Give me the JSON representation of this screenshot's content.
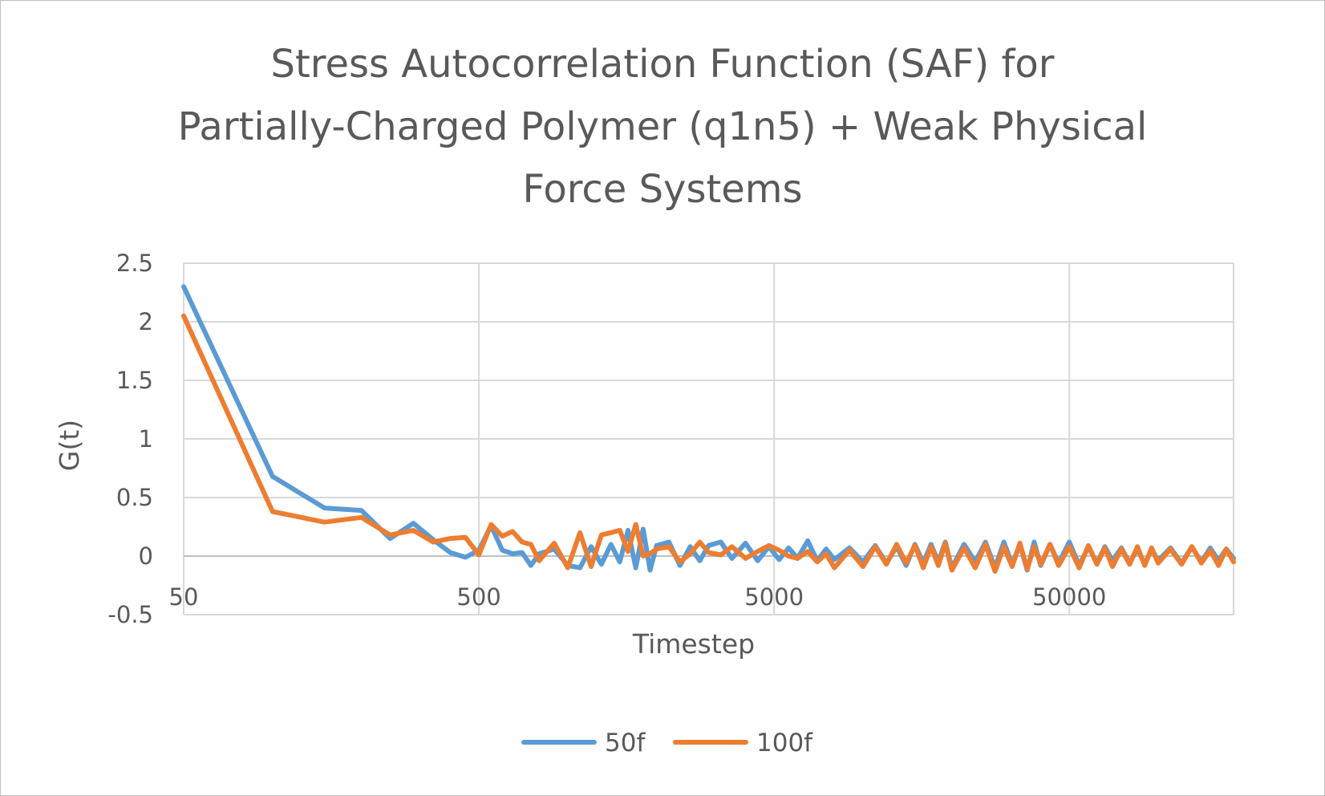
{
  "chart_data": {
    "type": "line",
    "title": "Stress Autocorrelation Function (SAF) for Partially-Charged Polymer (q1n5) + Weak Physical Force Systems",
    "title_lines": [
      "Stress Autocorrelation Function (SAF) for",
      "Partially-Charged Polymer (q1n5) + Weak Physical",
      "Force Systems"
    ],
    "xlabel": "Timestep",
    "ylabel": "G(t)",
    "x_scale": "log",
    "xlim": [
      50,
      180000
    ],
    "ylim": [
      -0.5,
      2.5
    ],
    "x_ticks": [
      "50",
      "500",
      "5000",
      "50000"
    ],
    "x_tick_values": [
      50,
      500,
      5000,
      50000
    ],
    "y_ticks": [
      "2.5",
      "2",
      "1.5",
      "1",
      "0.5",
      "0",
      "-0.5"
    ],
    "y_tick_values": [
      2.5,
      2,
      1.5,
      1,
      0.5,
      0,
      -0.5
    ],
    "grid": true,
    "legend_position": "bottom",
    "series": [
      {
        "name": "50f",
        "color": "#5b9bd5",
        "points": [
          [
            50,
            2.3
          ],
          [
            100,
            0.68
          ],
          [
            150,
            0.41
          ],
          [
            200,
            0.39
          ],
          [
            250,
            0.15
          ],
          [
            300,
            0.28
          ],
          [
            350,
            0.14
          ],
          [
            400,
            0.03
          ],
          [
            450,
            -0.01
          ],
          [
            500,
            0.05
          ],
          [
            550,
            0.26
          ],
          [
            600,
            0.05
          ],
          [
            650,
            0.02
          ],
          [
            700,
            0.03
          ],
          [
            750,
            -0.08
          ],
          [
            800,
            0.02
          ],
          [
            900,
            0.06
          ],
          [
            1000,
            -0.08
          ],
          [
            1100,
            -0.1
          ],
          [
            1200,
            0.08
          ],
          [
            1300,
            -0.07
          ],
          [
            1400,
            0.1
          ],
          [
            1500,
            -0.05
          ],
          [
            1600,
            0.22
          ],
          [
            1700,
            -0.1
          ],
          [
            1800,
            0.23
          ],
          [
            1900,
            -0.12
          ],
          [
            2000,
            0.09
          ],
          [
            2200,
            0.12
          ],
          [
            2400,
            -0.08
          ],
          [
            2600,
            0.08
          ],
          [
            2800,
            -0.04
          ],
          [
            3000,
            0.09
          ],
          [
            3300,
            0.12
          ],
          [
            3600,
            -0.02
          ],
          [
            4000,
            0.11
          ],
          [
            4400,
            -0.04
          ],
          [
            4800,
            0.08
          ],
          [
            5200,
            -0.03
          ],
          [
            5600,
            0.07
          ],
          [
            6000,
            -0.02
          ],
          [
            6500,
            0.13
          ],
          [
            7000,
            -0.04
          ],
          [
            7500,
            0.06
          ],
          [
            8000,
            -0.03
          ],
          [
            9000,
            0.07
          ],
          [
            10000,
            -0.05
          ],
          [
            11000,
            0.09
          ],
          [
            12000,
            -0.06
          ],
          [
            13000,
            0.08
          ],
          [
            14000,
            -0.08
          ],
          [
            15000,
            0.1
          ],
          [
            16000,
            -0.06
          ],
          [
            17000,
            0.1
          ],
          [
            18000,
            -0.05
          ],
          [
            19000,
            0.12
          ],
          [
            20000,
            -0.1
          ],
          [
            22000,
            0.1
          ],
          [
            24000,
            -0.05
          ],
          [
            26000,
            0.12
          ],
          [
            28000,
            -0.1
          ],
          [
            30000,
            0.12
          ],
          [
            32000,
            -0.07
          ],
          [
            34000,
            0.1
          ],
          [
            36000,
            -0.12
          ],
          [
            38000,
            0.12
          ],
          [
            40000,
            -0.08
          ],
          [
            43000,
            0.1
          ],
          [
            46000,
            -0.06
          ],
          [
            50000,
            0.12
          ],
          [
            54000,
            -0.08
          ],
          [
            58000,
            0.08
          ],
          [
            62000,
            -0.06
          ],
          [
            66000,
            0.08
          ],
          [
            70000,
            -0.04
          ],
          [
            75000,
            0.07
          ],
          [
            80000,
            -0.06
          ],
          [
            85000,
            0.06
          ],
          [
            90000,
            -0.07
          ],
          [
            95000,
            0.06
          ],
          [
            100000,
            -0.04
          ],
          [
            110000,
            0.07
          ],
          [
            120000,
            -0.06
          ],
          [
            130000,
            0.08
          ],
          [
            140000,
            -0.05
          ],
          [
            150000,
            0.07
          ],
          [
            160000,
            -0.04
          ],
          [
            170000,
            0.06
          ],
          [
            180000,
            -0.02
          ]
        ]
      },
      {
        "name": "100f",
        "color": "#ed7d31",
        "points": [
          [
            50,
            2.05
          ],
          [
            100,
            0.38
          ],
          [
            150,
            0.29
          ],
          [
            200,
            0.33
          ],
          [
            250,
            0.18
          ],
          [
            300,
            0.22
          ],
          [
            350,
            0.12
          ],
          [
            400,
            0.15
          ],
          [
            450,
            0.16
          ],
          [
            500,
            0.01
          ],
          [
            550,
            0.27
          ],
          [
            600,
            0.17
          ],
          [
            650,
            0.21
          ],
          [
            700,
            0.12
          ],
          [
            750,
            0.1
          ],
          [
            800,
            -0.04
          ],
          [
            900,
            0.11
          ],
          [
            1000,
            -0.1
          ],
          [
            1100,
            0.2
          ],
          [
            1200,
            -0.09
          ],
          [
            1300,
            0.18
          ],
          [
            1400,
            0.2
          ],
          [
            1500,
            0.22
          ],
          [
            1600,
            0.04
          ],
          [
            1700,
            0.27
          ],
          [
            1800,
            0.0
          ],
          [
            1900,
            0.02
          ],
          [
            2000,
            0.06
          ],
          [
            2200,
            0.08
          ],
          [
            2400,
            -0.05
          ],
          [
            2600,
            0.02
          ],
          [
            2800,
            0.12
          ],
          [
            3000,
            0.03
          ],
          [
            3300,
            0.01
          ],
          [
            3600,
            0.08
          ],
          [
            4000,
            -0.02
          ],
          [
            4400,
            0.04
          ],
          [
            4800,
            0.09
          ],
          [
            5200,
            0.05
          ],
          [
            5600,
            0.0
          ],
          [
            6000,
            -0.02
          ],
          [
            6500,
            0.04
          ],
          [
            7000,
            -0.05
          ],
          [
            7500,
            0.02
          ],
          [
            8000,
            -0.1
          ],
          [
            9000,
            0.05
          ],
          [
            10000,
            -0.09
          ],
          [
            11000,
            0.08
          ],
          [
            12000,
            -0.07
          ],
          [
            13000,
            0.1
          ],
          [
            14000,
            -0.06
          ],
          [
            15000,
            0.09
          ],
          [
            16000,
            -0.1
          ],
          [
            17000,
            0.08
          ],
          [
            18000,
            -0.08
          ],
          [
            19000,
            0.11
          ],
          [
            20000,
            -0.12
          ],
          [
            22000,
            0.07
          ],
          [
            24000,
            -0.1
          ],
          [
            26000,
            0.1
          ],
          [
            28000,
            -0.13
          ],
          [
            30000,
            0.08
          ],
          [
            32000,
            -0.09
          ],
          [
            34000,
            0.11
          ],
          [
            36000,
            -0.11
          ],
          [
            38000,
            0.08
          ],
          [
            40000,
            -0.07
          ],
          [
            43000,
            0.1
          ],
          [
            46000,
            -0.08
          ],
          [
            50000,
            0.08
          ],
          [
            54000,
            -0.1
          ],
          [
            58000,
            0.09
          ],
          [
            62000,
            -0.07
          ],
          [
            66000,
            0.07
          ],
          [
            70000,
            -0.09
          ],
          [
            75000,
            0.06
          ],
          [
            80000,
            -0.07
          ],
          [
            85000,
            0.08
          ],
          [
            90000,
            -0.08
          ],
          [
            95000,
            0.07
          ],
          [
            100000,
            -0.06
          ],
          [
            110000,
            0.06
          ],
          [
            120000,
            -0.07
          ],
          [
            130000,
            0.08
          ],
          [
            140000,
            -0.06
          ],
          [
            150000,
            0.05
          ],
          [
            160000,
            -0.08
          ],
          [
            170000,
            0.06
          ],
          [
            180000,
            -0.05
          ]
        ]
      }
    ]
  }
}
